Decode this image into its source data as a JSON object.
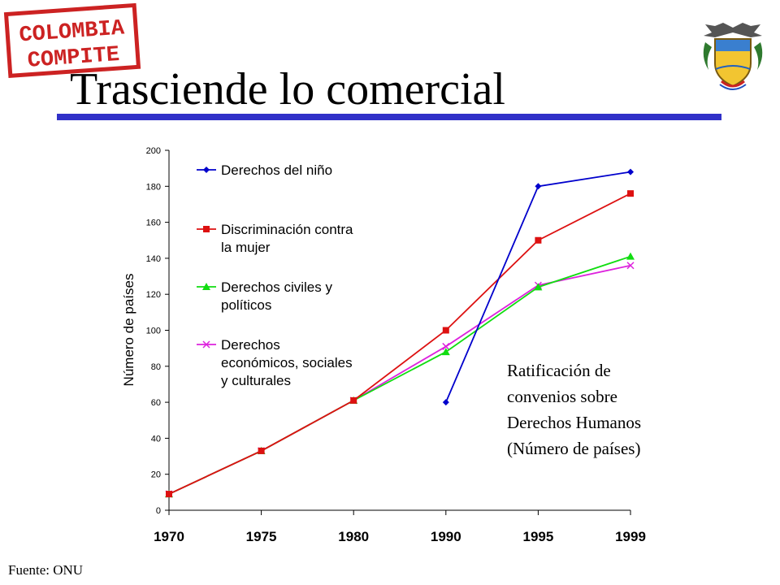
{
  "slide": {
    "title": "Trasciende lo comercial",
    "source": "Fuente: ONU",
    "logo_text": [
      "COLOMBIA",
      "COMPITE"
    ],
    "annotation_lines": [
      "Ratificación de",
      "convenios sobre",
      "Derechos Humanos",
      "(Número de países)"
    ],
    "colors": {
      "rule": "#3030c8",
      "stamp": "#cc2222"
    }
  },
  "chart_data": {
    "type": "line",
    "categories": [
      "1970",
      "1975",
      "1980",
      "1990",
      "1995",
      "1999"
    ],
    "ylabel": "Número de países",
    "xlabel": "",
    "ylim": [
      0,
      200
    ],
    "yticks": [
      0,
      20,
      40,
      60,
      80,
      100,
      120,
      140,
      160,
      180,
      200
    ],
    "grid": false,
    "legend_position": "top-left",
    "series": [
      {
        "name": "Derechos del niño",
        "legend_lines": [
          "Derechos del niño"
        ],
        "values": [
          null,
          null,
          null,
          60,
          180,
          188
        ],
        "color": "#0000cc",
        "marker": "diamond"
      },
      {
        "name": "Discriminación contra la mujer",
        "legend_lines": [
          "Discriminación contra",
          "la mujer"
        ],
        "values": [
          9,
          33,
          61,
          100,
          150,
          176
        ],
        "color": "#dd1111",
        "marker": "square"
      },
      {
        "name": "Derechos civiles y políticos",
        "legend_lines": [
          "Derechos civiles y",
          "políticos"
        ],
        "values": [
          9,
          33,
          61,
          88,
          124,
          141
        ],
        "color": "#11dd11",
        "marker": "triangle"
      },
      {
        "name": "Derechos económicos, sociales y culturales",
        "legend_lines": [
          "Derechos",
          "económicos, sociales",
          "y culturales"
        ],
        "values": [
          9,
          33,
          61,
          91,
          125,
          136
        ],
        "color": "#dd22dd",
        "marker": "x"
      }
    ]
  }
}
